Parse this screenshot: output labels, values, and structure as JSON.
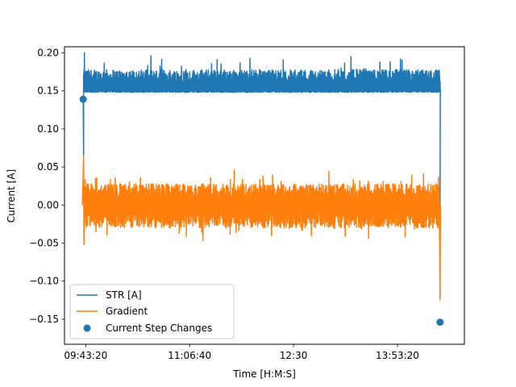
{
  "chart_data": {
    "type": "line",
    "xlabel": "Time [H:M:S]",
    "ylabel": "Current [A]",
    "x_ticks": [
      {
        "value": 35000,
        "label": "09:43:20"
      },
      {
        "value": 40000,
        "label": "11:06:40"
      },
      {
        "value": 45000,
        "label": "12:30"
      },
      {
        "value": 50000,
        "label": "13:53:20"
      }
    ],
    "y_ticks": [
      -0.15,
      -0.1,
      -0.05,
      0.0,
      0.05,
      0.1,
      0.15,
      0.2
    ],
    "y_tick_labels": [
      "−0.15",
      "−0.10",
      "−0.05",
      "0.00",
      "0.05",
      "0.10",
      "0.15",
      "0.20"
    ],
    "xlim": [
      33980,
      53220
    ],
    "ylim": [
      -0.183,
      0.208
    ],
    "legend_position": "lower-left",
    "grid": false,
    "series": [
      {
        "name": "STR [A]",
        "color": "#1f77b4",
        "x_start": 34900,
        "x_end": 52050,
        "baseline": 0.148,
        "envelope_top": 0.178,
        "peaks": [
          0.2,
          0.196,
          0.193,
          0.195,
          0.192
        ],
        "pre_value": 0.139,
        "post_value": 0.0
      },
      {
        "name": "Gradient",
        "color": "#ff7f0e",
        "x_start": 34900,
        "x_end": 52050,
        "envelope_top": 0.028,
        "envelope_bottom": -0.03,
        "peaks": [
          0.065,
          0.046,
          0.044,
          0.041
        ],
        "troughs": [
          -0.052,
          -0.047,
          -0.044,
          -0.125
        ]
      }
    ],
    "scatter": {
      "name": "Current Step Changes",
      "color": "#1f77b4",
      "points": [
        {
          "x": 34880,
          "y": 0.139
        },
        {
          "x": 52050,
          "y": -0.154
        }
      ]
    }
  }
}
